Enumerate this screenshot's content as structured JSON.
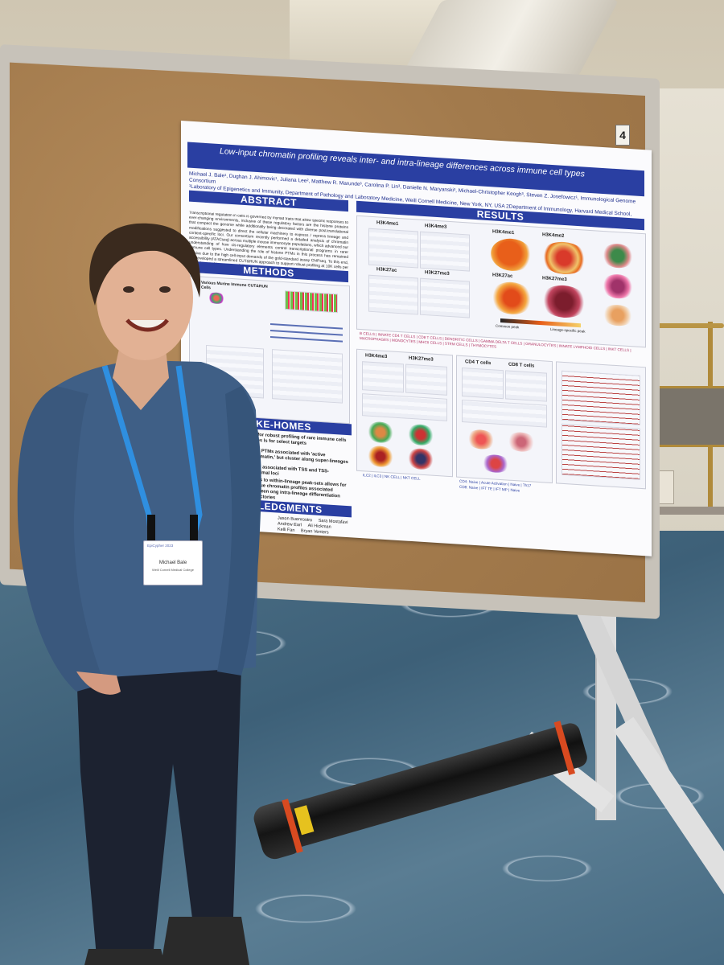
{
  "poster": {
    "booth_number": "4",
    "title": "Low-input chromatin profiling reveals inter- and intra-lineage differences across immune cell types",
    "authors": "Michael J. Bale¹, Dughan J. Ahimovic¹, Juliana Lee², Matthew R. Marunde³, Carolina P. Lin³, Danielle N. Maryanski³, Michael-Christopher Keogh³, Steven Z. Josefowicz¹, Immunological Genome Consortium",
    "affiliations": "¹Laboratory of Epigenetics and Immunity, Department of Pathology and Laboratory Medicine, Weill Cornell Medicine, New York, NY, USA  2Department of Immunology, Harvard Medical School, Boston, MA, USA  ³EpiCypher Inc., Durham, NC, USA",
    "sections": {
      "abstract": "ABSTRACT",
      "methods": "METHODS",
      "results": "RESULTS",
      "takehomes": "AKE-HOMES",
      "acknowledgments": "WLEDGMENTS"
    },
    "abstract_text": "Transcriptional regulation in cells is governed by myriad traits that allow specific responses to ever-changing environments, inclusive of these regulatory factors are the histone proteins that compact the genome while additionally being decorated with diverse post-translational modifications suggested to direct the cellular machinery to express / repress lineage and context-specific loci. Our consortium recently performed a detailed analysis of chromatin accessibility (ATACseq) across multiple mouse immunocyte populations, which advanced our understanding of how cis-regulatory elements control transcriptional programs in rarer immune cell types. Understanding the role of histone PTMs in this process has remained elusive due to the high cell-input demands of the gold-standard assay ChIPseq. To this end, we developed a streamlined CUT&RUN approach to support robust profiling at 10K cells per target in sorted immune populations.",
    "methods_labels": {
      "murine": "Various Murine Immune Cells",
      "cutrun": "CUT&RUN"
    },
    "results_labels": {
      "a_marks": [
        "H3K4me1",
        "H3K4me3",
        "H3K27ac",
        "H3K27me3"
      ],
      "b_marks": [
        "H3K4me1",
        "H3K4me2",
        "H3K27ac",
        "H3K27me3"
      ],
      "scale_left": "Common peak",
      "scale_right": "Lineage-specific peak",
      "cell_types": "B CELLS | INNATE CD4 T CELLS | CD8 T CELLS | DENDRITIC CELLS | GAMMA DELTA T CELLS | GRANULOCYTES | INNATE LYMPHOID CELLS | INKT CELLS | MACROPHAGES | MONOCYTES | MHCII CELLS | STEM CELLS | THYMOCYTES",
      "lower_marks": [
        "H3K4me3",
        "H3K27me3"
      ],
      "lower_cells": [
        "CD4 T cells",
        "CD8 T cells"
      ],
      "lineage_legend": "ILC2 | ILC3 | NK CELL | NKT CELL",
      "cd4_legend": "CD4: Naive | Acute Activation | Naive | Th17",
      "cd8_legend": "CD8: Naive | IFT TE | IFT MP | Naive"
    },
    "takehomes": [
      "ws for robust profiling of rare immune cells types ls for select targets",
      "tone PTMs associated with 'active chromatin,' but cluster along super-lineages",
      "rially associated with TSS and TSS-proximal loci",
      "alous to within-lineage peak-sets allows for unique chromatin profiles associated between ong intra-lineage differentiation trajectories"
    ],
    "ack_names": [
      [
        "Jason Buenrostro",
        "Sara Mostafavi"
      ],
      [
        "Andrew Earl",
        "Ali Hickman"
      ],
      [
        "Kelli Fan",
        "Bryan Venters"
      ]
    ]
  },
  "badge": {
    "logo": "EpiCypher 2023",
    "name": "Michael Bale",
    "org": "Weill Cornell Medical College"
  },
  "colors": {
    "poster_blue": "#2a3fa2",
    "shirt": "#3f5f86",
    "lanyard": "#2f8fe0",
    "tube_ring": "#d84a20",
    "tube_label": "#e6c21e"
  }
}
